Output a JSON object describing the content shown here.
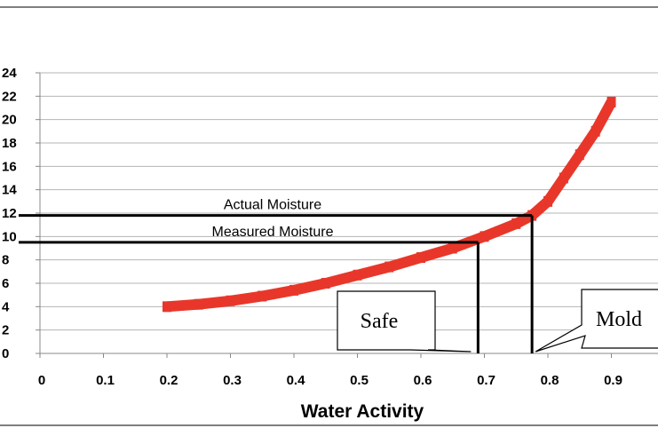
{
  "chart_data": {
    "type": "line",
    "xlabel": "Water Activity",
    "ylabel": "",
    "xlim": [
      0,
      0.95
    ],
    "ylim": [
      0,
      24
    ],
    "x_ticks": [
      "0",
      "0.1",
      "0.2",
      "0.3",
      "0.4",
      "0.5",
      "0.6",
      "0.7",
      "0.8",
      "0.9"
    ],
    "y_ticks": [
      "0",
      "2",
      "4",
      "6",
      "8",
      "10",
      "12",
      "14",
      "16",
      "18",
      "20",
      "22",
      "24"
    ],
    "grid": true,
    "series": [
      {
        "color": "#e8372a",
        "x": [
          0.2,
          0.25,
          0.3,
          0.35,
          0.4,
          0.45,
          0.5,
          0.55,
          0.6,
          0.65,
          0.7,
          0.75,
          0.775,
          0.8,
          0.825,
          0.85,
          0.875,
          0.9
        ],
        "y": [
          4.0,
          4.2,
          4.5,
          4.9,
          5.4,
          6.0,
          6.7,
          7.4,
          8.2,
          9.0,
          10.0,
          11.1,
          11.8,
          13.0,
          15.0,
          17.0,
          19.0,
          21.5
        ]
      }
    ],
    "reference_lines": [
      {
        "label": "Actual Moisture",
        "moisture": 11.8,
        "water_activity": 0.775,
        "color": "#000000"
      },
      {
        "label": "Measured Moisture",
        "moisture": 9.5,
        "water_activity": 0.69,
        "color": "#000000"
      }
    ],
    "callouts": [
      {
        "text": "Safe",
        "points_to_water_activity": 0.69
      },
      {
        "text": "Mold",
        "points_to_water_activity": 0.775
      }
    ]
  }
}
